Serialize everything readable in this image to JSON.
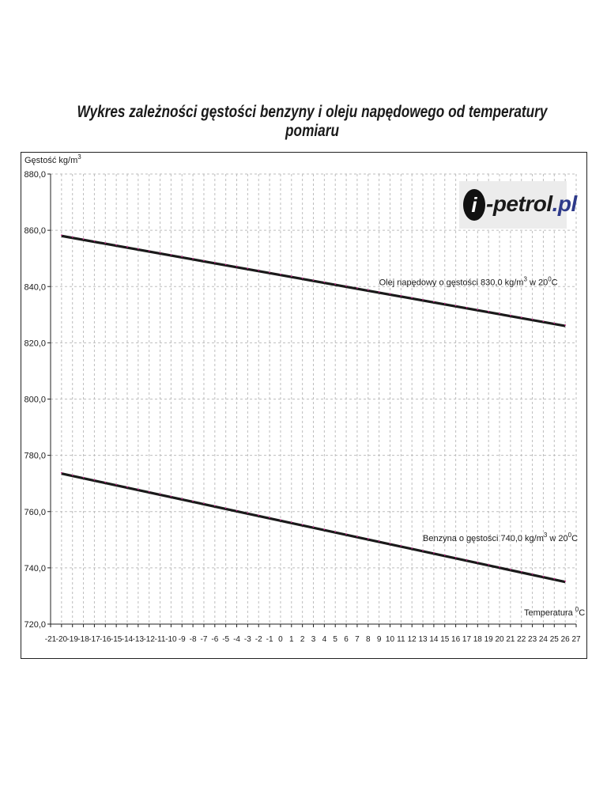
{
  "chart_data": {
    "type": "line",
    "title": "Wykres zależności gęstości benzyny i oleju napędowego od temperatury pomiaru",
    "ylabel": "Gęstość kg/m",
    "ylabel_sup": "3",
    "xlabel": "Temperatura",
    "xlabel_sup": "0",
    "xlabel_unit": "C",
    "xlim": [
      -21,
      27
    ],
    "ylim": [
      720,
      880
    ],
    "yticks": [
      "720,0",
      "740,0",
      "760,0",
      "780,0",
      "800,0",
      "820,0",
      "840,0",
      "860,0",
      "880,0"
    ],
    "ytick_values": [
      720,
      740,
      760,
      780,
      800,
      820,
      840,
      860,
      880
    ],
    "xticks": [
      -21,
      -20,
      -19,
      -18,
      -17,
      -16,
      -15,
      -14,
      -13,
      -12,
      -11,
      -10,
      -9,
      -8,
      -7,
      -6,
      -5,
      -4,
      -3,
      -2,
      -1,
      0,
      1,
      2,
      3,
      4,
      5,
      6,
      7,
      8,
      9,
      10,
      11,
      12,
      13,
      14,
      15,
      16,
      17,
      18,
      19,
      20,
      21,
      22,
      23,
      24,
      25,
      26,
      27
    ],
    "grid": true,
    "series": [
      {
        "name": "Olej napędowy o gęstości 830,0 kg/m",
        "name_sup": "3",
        "name_suffix": " w 20",
        "name_suffix_sup": "0",
        "name_suffix_end": "C",
        "x": [
          -20,
          26
        ],
        "y": [
          858.0,
          826.0
        ],
        "label_anchor": [
          9,
          840.5
        ]
      },
      {
        "name": "Benzyna o gęstości 740,0 kg/m",
        "name_sup": "3",
        "name_suffix": " w 20",
        "name_suffix_sup": "0",
        "name_suffix_end": "C",
        "x": [
          -20,
          26
        ],
        "y": [
          773.5,
          735.0
        ],
        "label_anchor": [
          13,
          749.5
        ]
      }
    ]
  },
  "logo": {
    "mark": "i",
    "text_dark": "-petrol",
    "text_blue": ".pl"
  },
  "colors": {
    "line": "#1a1a1a",
    "marker": "#c02080",
    "grid": "#bdbdbd"
  }
}
